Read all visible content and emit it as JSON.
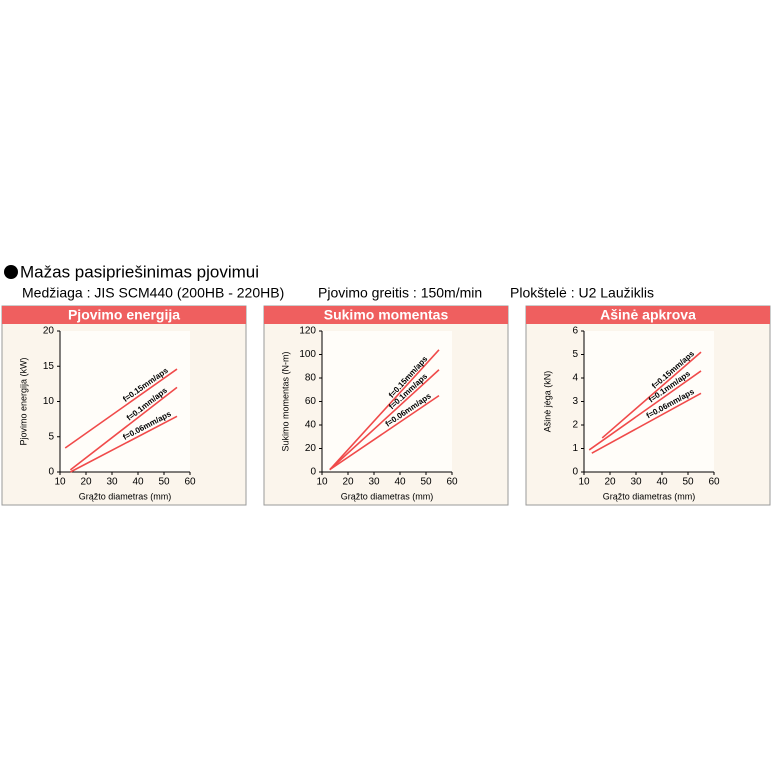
{
  "header": {
    "title": "Mažas pasipriešinimas pjovimui",
    "details": [
      "Medžiaga : JIS SCM440 (200HB - 220HB)",
      "Pjovimo greitis : 150m/min",
      "Plokštelė : U2 Laužiklis"
    ]
  },
  "chart_data": [
    {
      "type": "line",
      "title": "Pjovimo energija",
      "x_label": "Grąžto diametras (mm)",
      "y_label": "Pjovimo energija (kW)",
      "xlim": [
        10,
        60
      ],
      "xticks": [
        10,
        20,
        30,
        40,
        50,
        60
      ],
      "ylim": [
        0,
        20
      ],
      "yticks": [
        0,
        5,
        10,
        15,
        20
      ],
      "series": [
        {
          "name": "f=0.15mm/aps",
          "color": "#f04a4a",
          "x": [
            12,
            55
          ],
          "values": [
            3.4,
            14.6
          ]
        },
        {
          "name": "f=0.1mm/aps",
          "color": "#f04a4a",
          "x": [
            14,
            55
          ],
          "values": [
            0.3,
            12
          ]
        },
        {
          "name": "f=0.06mm/aps",
          "color": "#f04a4a",
          "x": [
            14,
            55
          ],
          "values": [
            0,
            7.9
          ]
        }
      ]
    },
    {
      "type": "line",
      "title": "Sukimo momentas",
      "x_label": "Grąžto diametras (mm)",
      "y_label": "Sukimo momentas (N-m)",
      "xlim": [
        10,
        60
      ],
      "xticks": [
        10,
        20,
        30,
        40,
        50,
        60
      ],
      "ylim": [
        0,
        120
      ],
      "yticks": [
        0,
        20,
        40,
        60,
        80,
        100,
        120
      ],
      "series": [
        {
          "name": "f=0.15mm/aps",
          "color": "#f04a4a",
          "x": [
            13,
            55
          ],
          "values": [
            2,
            104
          ]
        },
        {
          "name": "f=0.1mm/aps",
          "color": "#f04a4a",
          "x": [
            13,
            55
          ],
          "values": [
            2,
            87
          ]
        },
        {
          "name": "f=0.06mm/aps",
          "color": "#f04a4a",
          "x": [
            13,
            55
          ],
          "values": [
            2,
            65
          ]
        }
      ]
    },
    {
      "type": "line",
      "title": "Ašinė apkrova",
      "x_label": "Grąžto diametras (mm)",
      "y_label": "Ašinė jėga (kN)",
      "xlim": [
        10,
        60
      ],
      "xticks": [
        10,
        20,
        30,
        40,
        50,
        60
      ],
      "ylim": [
        0,
        6
      ],
      "yticks": [
        0,
        1,
        2,
        3,
        4,
        5,
        6
      ],
      "series": [
        {
          "name": "f=0.15mm/aps",
          "color": "#f04a4a",
          "x": [
            17,
            55
          ],
          "values": [
            1.45,
            5.1
          ]
        },
        {
          "name": "f=0.1mm/aps",
          "color": "#f04a4a",
          "x": [
            12,
            55
          ],
          "values": [
            0.94,
            4.3
          ]
        },
        {
          "name": "f=0.06mm/aps",
          "color": "#f04a4a",
          "x": [
            13,
            55
          ],
          "values": [
            0.8,
            3.35
          ]
        }
      ]
    }
  ]
}
